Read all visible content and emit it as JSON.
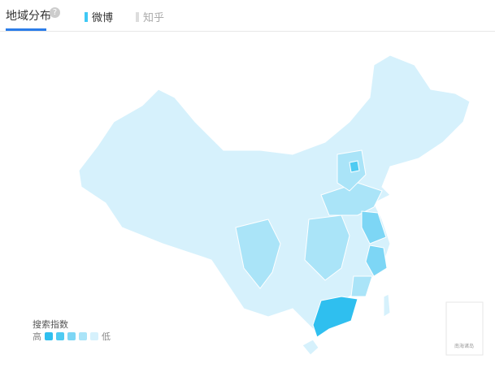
{
  "tabs": {
    "title": "地域分布",
    "help_icon": "?",
    "sources": [
      {
        "label": "微博",
        "color": "#3ec8f5",
        "active": true
      },
      {
        "label": "知乎",
        "color": "#dddddd",
        "active": false
      }
    ]
  },
  "legend": {
    "title": "搜索指数",
    "high": "高",
    "low": "低",
    "colors": [
      "#2fbfef",
      "#4fcbf2",
      "#7dd6f5",
      "#aae4f8",
      "#d6f1fc"
    ]
  },
  "inset": {
    "label": "南海诸岛"
  }
}
